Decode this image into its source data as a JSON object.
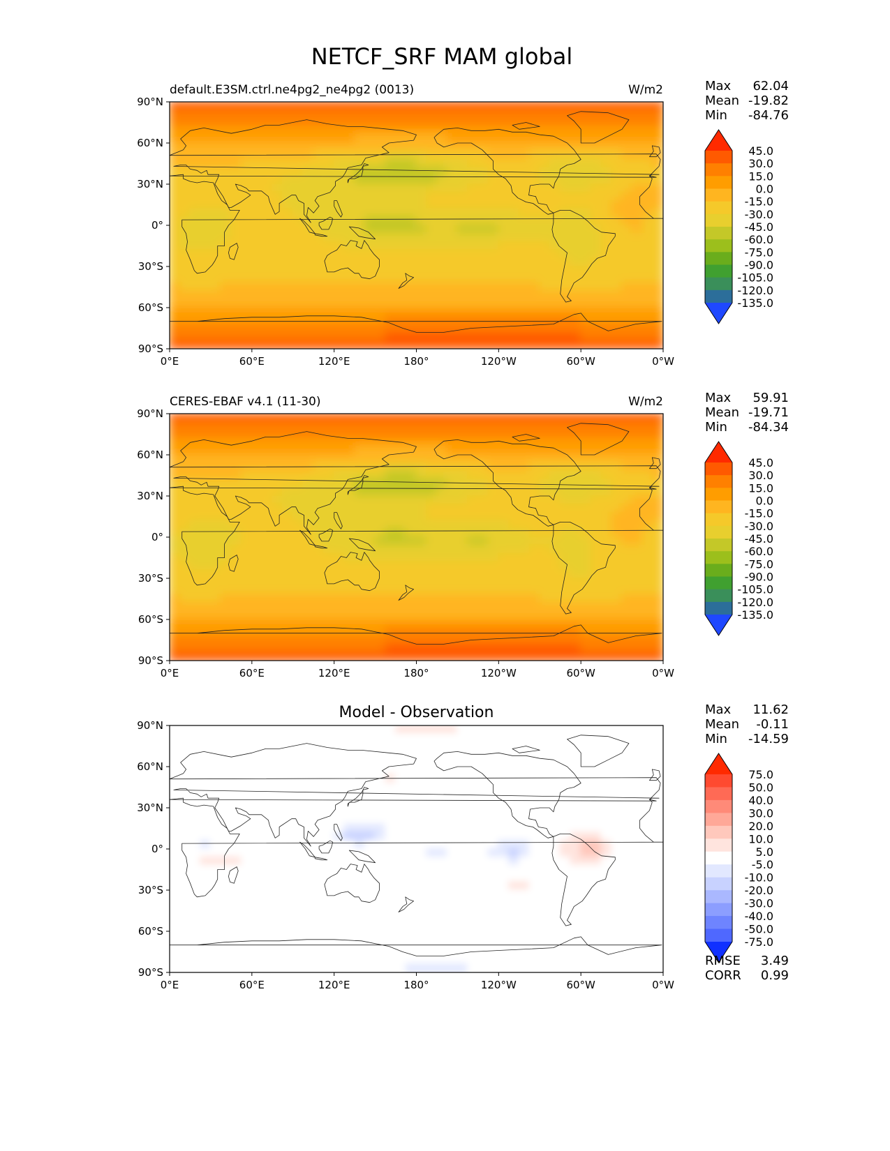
{
  "figure": {
    "title": "NETCF_SRF MAM global"
  },
  "chart_data": [
    {
      "type": "heatmap",
      "title": "default.E3SM.ctrl.ne4pg2_ne4pg2 (0013)",
      "units": "W/m2",
      "stats": [
        {
          "label": "Max",
          "value": "62.04"
        },
        {
          "label": "Mean",
          "value": "-19.82"
        },
        {
          "label": "Min",
          "value": "-84.76"
        }
      ],
      "colorbar": {
        "levels": [
          "45.0",
          "30.0",
          "15.0",
          "0.0",
          "-15.0",
          "-30.0",
          "-45.0",
          "-60.0",
          "-75.0",
          "-90.0",
          "-105.0",
          "-120.0",
          "-135.0"
        ],
        "colors": [
          "#ff2a00",
          "#ff5a00",
          "#ff8000",
          "#ff9d00",
          "#ffb520",
          "#f5c92a",
          "#e8cf2e",
          "#c4c828",
          "#9cbf1c",
          "#6aad1c",
          "#40a030",
          "#3a8f5a",
          "#2c6e9a",
          "#1a5ccc",
          "#1f48ff"
        ]
      },
      "xticks": [
        "0°E",
        "60°E",
        "120°E",
        "180°",
        "120°W",
        "60°W",
        "0°W"
      ],
      "yticks": [
        "90°N",
        "60°N",
        "30°N",
        "0°",
        "30°S",
        "60°S",
        "90°S"
      ],
      "field": "model"
    },
    {
      "type": "heatmap",
      "title": "CERES-EBAF v4.1 (11-30)",
      "units": "W/m2",
      "stats": [
        {
          "label": "Max",
          "value": "59.91"
        },
        {
          "label": "Mean",
          "value": "-19.71"
        },
        {
          "label": "Min",
          "value": "-84.34"
        }
      ],
      "colorbar": {
        "levels": [
          "45.0",
          "30.0",
          "15.0",
          "0.0",
          "-15.0",
          "-30.0",
          "-45.0",
          "-60.0",
          "-75.0",
          "-90.0",
          "-105.0",
          "-120.0",
          "-135.0"
        ],
        "colors": [
          "#ff2a00",
          "#ff5a00",
          "#ff8000",
          "#ff9d00",
          "#ffb520",
          "#f5c92a",
          "#e8cf2e",
          "#c4c828",
          "#9cbf1c",
          "#6aad1c",
          "#40a030",
          "#3a8f5a",
          "#2c6e9a",
          "#1a5ccc",
          "#1f48ff"
        ]
      },
      "xticks": [
        "0°E",
        "60°E",
        "120°E",
        "180°",
        "120°W",
        "60°W",
        "0°W"
      ],
      "yticks": [
        "90°N",
        "60°N",
        "30°N",
        "0°",
        "30°S",
        "60°S",
        "90°S"
      ],
      "field": "obs"
    },
    {
      "type": "heatmap",
      "title": "Model - Observation",
      "units": "",
      "stats": [
        {
          "label": "Max",
          "value": "11.62"
        },
        {
          "label": "Mean",
          "value": "-0.11"
        },
        {
          "label": "Min",
          "value": "-14.59"
        }
      ],
      "colorbar": {
        "levels": [
          "75.0",
          "50.0",
          "40.0",
          "30.0",
          "20.0",
          "10.0",
          "5.0",
          "-5.0",
          "-10.0",
          "-20.0",
          "-30.0",
          "-40.0",
          "-50.0",
          "-75.0"
        ],
        "colors": [
          "#ff2a00",
          "#ff4a30",
          "#ff6a55",
          "#ff8a78",
          "#ffa898",
          "#ffc8bc",
          "#ffe4de",
          "#ffffff",
          "#e2e8ff",
          "#c8d2ff",
          "#aab8ff",
          "#8c9eff",
          "#6e84ff",
          "#4f68ff",
          "#2f4cff",
          "#1030ff"
        ]
      },
      "xticks": [
        "0°E",
        "60°E",
        "120°E",
        "180°",
        "120°W",
        "60°W",
        "0°W"
      ],
      "yticks": [
        "90°N",
        "60°N",
        "30°N",
        "0°",
        "30°S",
        "60°S",
        "90°S"
      ],
      "field": "diff",
      "metrics": [
        {
          "label": "RMSE",
          "value": "3.49"
        },
        {
          "label": "CORR",
          "value": "0.99"
        }
      ]
    }
  ]
}
